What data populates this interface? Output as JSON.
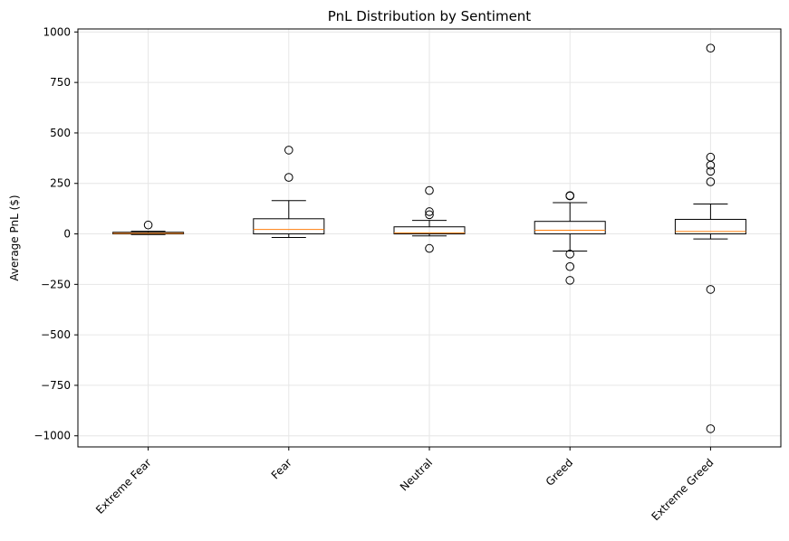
{
  "chart_data": {
    "type": "box",
    "title": "PnL Distribution by Sentiment",
    "xlabel": "",
    "ylabel": "Average PnL ($)",
    "ylim": [
      -1055,
      1015
    ],
    "yticks": [
      1000,
      750,
      500,
      250,
      0,
      -250,
      -500,
      -750,
      -1000
    ],
    "ytick_labels": [
      "1000",
      "750",
      "500",
      "250",
      "0",
      "−250",
      "−500",
      "−750",
      "−1000"
    ],
    "categories": [
      "Extreme Fear",
      "Fear",
      "Neutral",
      "Greed",
      "Extreme Greed"
    ],
    "grid": true,
    "boxes": [
      {
        "category": "Extreme Fear",
        "whisker_low": -3,
        "q1": 0,
        "median": 3,
        "q3": 8,
        "whisker_high": 13,
        "outliers": [
          44
        ]
      },
      {
        "category": "Fear",
        "whisker_low": -18,
        "q1": 0,
        "median": 22,
        "q3": 75,
        "whisker_high": 165,
        "outliers": [
          280,
          415
        ]
      },
      {
        "category": "Neutral",
        "whisker_low": -10,
        "q1": 0,
        "median": 5,
        "q3": 35,
        "whisker_high": 67,
        "outliers": [
          95,
          110,
          215,
          -72
        ]
      },
      {
        "category": "Greed",
        "whisker_low": -85,
        "q1": 0,
        "median": 18,
        "q3": 62,
        "whisker_high": 155,
        "outliers": [
          188,
          190,
          -100,
          -162,
          -230
        ]
      },
      {
        "category": "Extreme Greed",
        "whisker_low": -25,
        "q1": 0,
        "median": 12,
        "q3": 72,
        "whisker_high": 148,
        "outliers": [
          920,
          380,
          340,
          310,
          258,
          -275,
          -965
        ]
      }
    ],
    "colors": {
      "median": "#ff7f0e",
      "box": "#000000",
      "grid": "#e6e6e6"
    }
  }
}
